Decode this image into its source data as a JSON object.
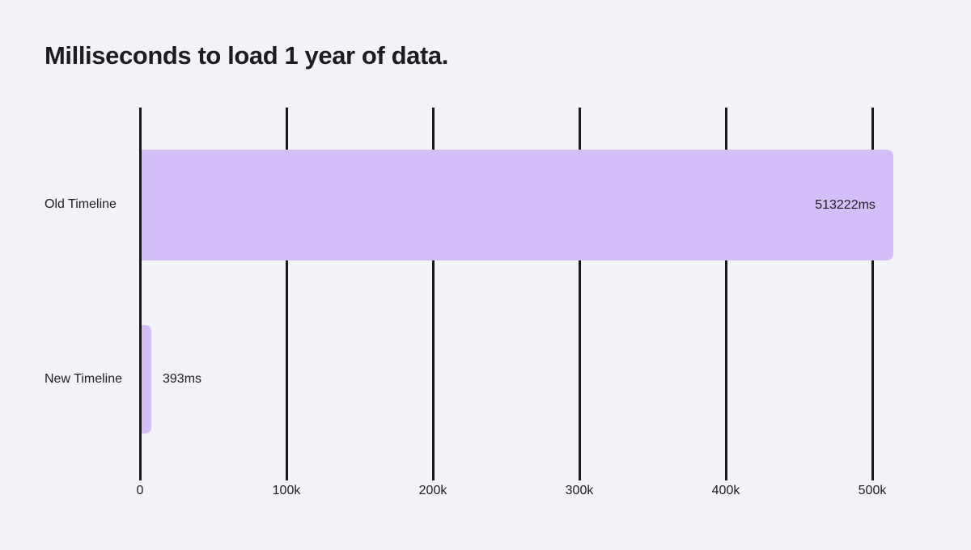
{
  "title": "Milliseconds to load 1 year of data.",
  "colors": {
    "background": "#f1f3f7",
    "bar": "#d4befa",
    "gridline": "#17191e",
    "text": "#1b1d23"
  },
  "chart_data": {
    "type": "bar",
    "orientation": "horizontal",
    "title": "Milliseconds to load 1 year of data.",
    "categories": [
      "Old Timeline",
      "New Timeline"
    ],
    "values": [
      513222,
      393
    ],
    "value_labels": [
      "513222ms",
      "393ms"
    ],
    "value_label_positions": [
      "inside-end",
      "outside-end"
    ],
    "x_ticks": [
      "0",
      "100k",
      "200k",
      "300k",
      "400k",
      "500k"
    ],
    "x_tick_values": [
      0,
      100000,
      200000,
      300000,
      400000,
      500000
    ],
    "xlim": [
      0,
      500000
    ],
    "xlabel": "",
    "ylabel": "",
    "grid": "vertical-full-height",
    "legend": "none"
  }
}
